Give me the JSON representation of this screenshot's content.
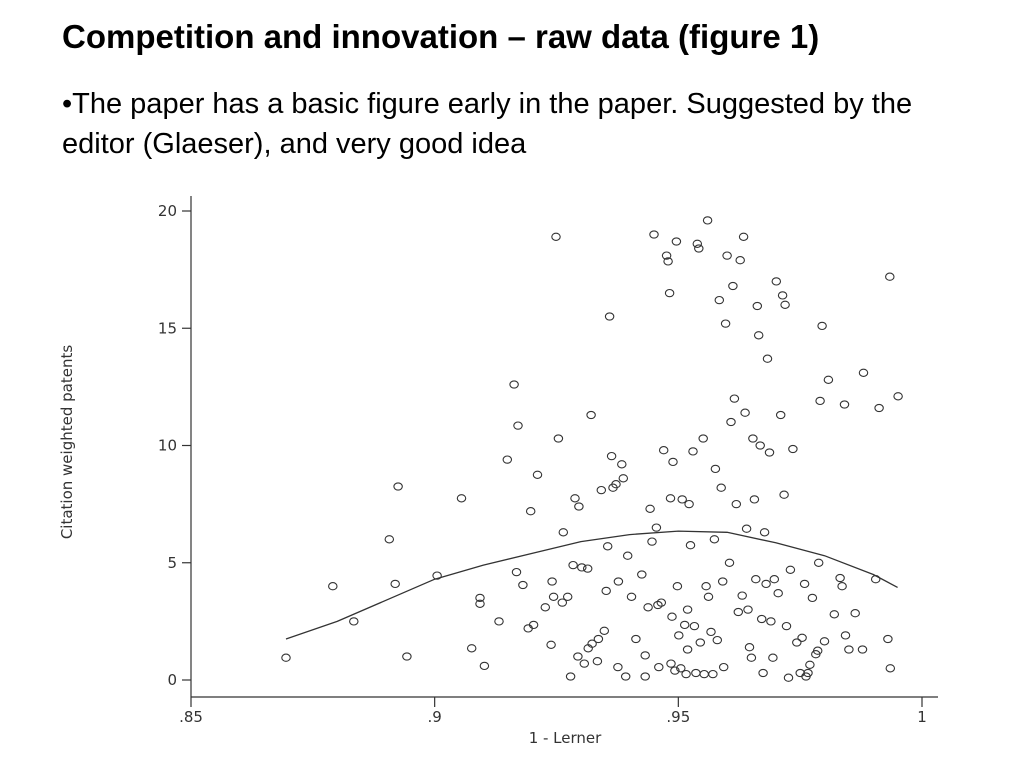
{
  "slide": {
    "title": "Competition and innovation – raw data (figure 1)",
    "bullet": "•The paper has a basic figure early in the paper. Suggested by the editor (Glaeser), and very good idea"
  },
  "chart_data": {
    "type": "scatter",
    "xlabel": "1 - Lerner",
    "ylabel": "Citation weighted patents",
    "xlim": [
      0.85,
      1.0
    ],
    "ylim": [
      0,
      20
    ],
    "xticks": [
      0.85,
      0.9,
      0.95,
      1.0
    ],
    "xtick_labels": [
      ".85",
      ".9",
      ".95",
      "1"
    ],
    "yticks": [
      0,
      5,
      10,
      15,
      20
    ],
    "ytick_labels": [
      "0",
      "5",
      "10",
      "15",
      "20"
    ],
    "grid": false,
    "marker": "hollow-circle",
    "colors": {
      "marker": "#333333",
      "line": "#333333",
      "axis": "#333333"
    },
    "points": [
      [
        0.8695,
        0.95
      ],
      [
        0.8791,
        4.0
      ],
      [
        0.8834,
        2.5
      ],
      [
        0.8907,
        6.0
      ],
      [
        0.8919,
        4.1
      ],
      [
        0.8925,
        8.25
      ],
      [
        0.8943,
        1.0
      ],
      [
        0.9005,
        4.45
      ],
      [
        0.9055,
        7.75
      ],
      [
        0.9076,
        1.35
      ],
      [
        0.9093,
        3.5
      ],
      [
        0.9093,
        3.25
      ],
      [
        0.9102,
        0.6
      ],
      [
        0.9132,
        2.5
      ],
      [
        0.9149,
        9.4
      ],
      [
        0.9163,
        12.6
      ],
      [
        0.9171,
        10.85
      ],
      [
        0.9168,
        4.6
      ],
      [
        0.9181,
        4.05
      ],
      [
        0.9192,
        2.2
      ],
      [
        0.9197,
        7.2
      ],
      [
        0.9203,
        2.35
      ],
      [
        0.9211,
        8.75
      ],
      [
        0.9227,
        3.1
      ],
      [
        0.9239,
        1.5
      ],
      [
        0.9244,
        3.55
      ],
      [
        0.9241,
        4.2
      ],
      [
        0.9249,
        18.9
      ],
      [
        0.9254,
        10.3
      ],
      [
        0.9262,
        3.3
      ],
      [
        0.9264,
        6.3
      ],
      [
        0.9273,
        3.55
      ],
      [
        0.9279,
        0.15
      ],
      [
        0.9284,
        4.9
      ],
      [
        0.9288,
        7.75
      ],
      [
        0.9296,
        7.4
      ],
      [
        0.9294,
        1.0
      ],
      [
        0.9302,
        4.8
      ],
      [
        0.9307,
        0.7
      ],
      [
        0.9314,
        4.75
      ],
      [
        0.9315,
        1.35
      ],
      [
        0.9321,
        11.3
      ],
      [
        0.9323,
        1.55
      ],
      [
        0.9334,
        0.8
      ],
      [
        0.9336,
        1.75
      ],
      [
        0.9342,
        8.1
      ],
      [
        0.9348,
        2.1
      ],
      [
        0.9355,
        5.7
      ],
      [
        0.9352,
        3.8
      ],
      [
        0.9359,
        15.5
      ],
      [
        0.9363,
        9.55
      ],
      [
        0.9366,
        8.2
      ],
      [
        0.9372,
        8.35
      ],
      [
        0.9376,
        0.55
      ],
      [
        0.9377,
        4.2
      ],
      [
        0.9384,
        9.2
      ],
      [
        0.9387,
        8.6
      ],
      [
        0.9392,
        0.15
      ],
      [
        0.9396,
        5.3
      ],
      [
        0.9404,
        3.55
      ],
      [
        0.9413,
        1.75
      ],
      [
        0.9425,
        4.5
      ],
      [
        0.9432,
        1.05
      ],
      [
        0.9432,
        0.15
      ],
      [
        0.9438,
        3.1
      ],
      [
        0.9442,
        7.3
      ],
      [
        0.9446,
        5.9
      ],
      [
        0.945,
        19.0
      ],
      [
        0.9455,
        6.5
      ],
      [
        0.9458,
        3.2
      ],
      [
        0.946,
        0.55
      ],
      [
        0.9465,
        3.3
      ],
      [
        0.947,
        9.8
      ],
      [
        0.9476,
        18.1
      ],
      [
        0.9479,
        17.85
      ],
      [
        0.9482,
        16.5
      ],
      [
        0.9484,
        7.75
      ],
      [
        0.9485,
        0.7
      ],
      [
        0.9487,
        2.7
      ],
      [
        0.9489,
        9.3
      ],
      [
        0.9493,
        0.4
      ],
      [
        0.9496,
        18.7
      ],
      [
        0.9498,
        4.0
      ],
      [
        0.9501,
        1.9
      ],
      [
        0.9505,
        0.5
      ],
      [
        0.9508,
        7.7
      ],
      [
        0.9513,
        2.35
      ],
      [
        0.9516,
        0.25
      ],
      [
        0.9519,
        1.3
      ],
      [
        0.9519,
        3.0
      ],
      [
        0.9522,
        7.5
      ],
      [
        0.9525,
        5.75
      ],
      [
        0.953,
        9.75
      ],
      [
        0.9533,
        2.3
      ],
      [
        0.9536,
        0.3
      ],
      [
        0.9539,
        18.6
      ],
      [
        0.9542,
        18.4
      ],
      [
        0.9545,
        1.6
      ],
      [
        0.9551,
        10.3
      ],
      [
        0.9553,
        0.25
      ],
      [
        0.9557,
        4.0
      ],
      [
        0.956,
        19.6
      ],
      [
        0.9562,
        3.55
      ],
      [
        0.9567,
        2.05
      ],
      [
        0.9571,
        0.25
      ],
      [
        0.9574,
        6.0
      ],
      [
        0.9576,
        9.0
      ],
      [
        0.958,
        1.7
      ],
      [
        0.9584,
        16.2
      ],
      [
        0.9588,
        8.2
      ],
      [
        0.9591,
        4.2
      ],
      [
        0.9593,
        0.55
      ],
      [
        0.9597,
        15.2
      ],
      [
        0.96,
        18.1
      ],
      [
        0.9605,
        5.0
      ],
      [
        0.9608,
        11.0
      ],
      [
        0.9612,
        16.8
      ],
      [
        0.9615,
        12.0
      ],
      [
        0.9619,
        7.5
      ],
      [
        0.9623,
        2.9
      ],
      [
        0.9627,
        17.9
      ],
      [
        0.9631,
        3.6
      ],
      [
        0.9634,
        18.9
      ],
      [
        0.9637,
        11.4
      ],
      [
        0.964,
        6.45
      ],
      [
        0.9643,
        3.0
      ],
      [
        0.9646,
        1.4
      ],
      [
        0.965,
        0.95
      ],
      [
        0.9653,
        10.3
      ],
      [
        0.9656,
        7.7
      ],
      [
        0.9659,
        4.3
      ],
      [
        0.9662,
        15.95
      ],
      [
        0.9665,
        14.7
      ],
      [
        0.9668,
        10.0
      ],
      [
        0.9671,
        2.6
      ],
      [
        0.9674,
        0.3
      ],
      [
        0.9677,
        6.3
      ],
      [
        0.968,
        4.1
      ],
      [
        0.9683,
        13.7
      ],
      [
        0.9687,
        9.7
      ],
      [
        0.969,
        2.5
      ],
      [
        0.9694,
        0.95
      ],
      [
        0.9697,
        4.3
      ],
      [
        0.9701,
        17.0
      ],
      [
        0.9705,
        3.7
      ],
      [
        0.971,
        11.3
      ],
      [
        0.9714,
        16.4
      ],
      [
        0.9717,
        7.9
      ],
      [
        0.9719,
        16.0
      ],
      [
        0.9722,
        2.3
      ],
      [
        0.9726,
        0.1
      ],
      [
        0.973,
        4.7
      ],
      [
        0.9735,
        9.85
      ],
      [
        0.9743,
        1.6
      ],
      [
        0.975,
        0.3
      ],
      [
        0.9754,
        1.8
      ],
      [
        0.9759,
        4.1
      ],
      [
        0.9762,
        0.15
      ],
      [
        0.9766,
        0.3
      ],
      [
        0.977,
        0.65
      ],
      [
        0.9775,
        3.5
      ],
      [
        0.9782,
        1.1
      ],
      [
        0.9786,
        1.25
      ],
      [
        0.9788,
        5.0
      ],
      [
        0.9791,
        11.9
      ],
      [
        0.9795,
        15.1
      ],
      [
        0.98,
        1.65
      ],
      [
        0.9808,
        12.8
      ],
      [
        0.982,
        2.8
      ],
      [
        0.9832,
        4.35
      ],
      [
        0.9836,
        4.0
      ],
      [
        0.9841,
        11.75
      ],
      [
        0.9843,
        1.9
      ],
      [
        0.985,
        1.3
      ],
      [
        0.9863,
        2.85
      ],
      [
        0.9878,
        1.3
      ],
      [
        0.988,
        13.1
      ],
      [
        0.9905,
        4.3
      ],
      [
        0.9912,
        11.6
      ],
      [
        0.993,
        1.75
      ],
      [
        0.9934,
        17.2
      ],
      [
        0.9935,
        0.5
      ],
      [
        0.9951,
        12.1
      ]
    ],
    "fit_line": {
      "x": [
        0.8695,
        0.88,
        0.89,
        0.9,
        0.91,
        0.92,
        0.93,
        0.94,
        0.95,
        0.96,
        0.97,
        0.98,
        0.99,
        0.995
      ],
      "y": [
        1.75,
        2.5,
        3.4,
        4.3,
        4.9,
        5.4,
        5.9,
        6.2,
        6.35,
        6.3,
        5.85,
        5.3,
        4.5,
        3.95
      ]
    }
  }
}
